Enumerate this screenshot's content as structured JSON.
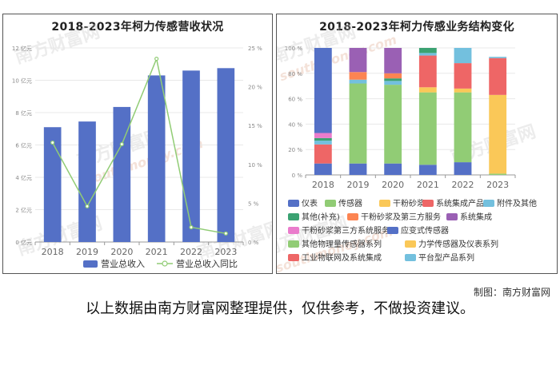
{
  "watermark": {
    "name": "南方财富网",
    "url": "southmoney.com"
  },
  "credit": "制图：南方财富网",
  "footnote": "以上数据由南方财富网整理提供，仅供参考，不做投资建议。",
  "colors": {
    "bar": "#5470c6",
    "line": "#91cc75",
    "categories": [
      "#5470c6",
      "#91cc75",
      "#fac858",
      "#ee6666",
      "#73c0de",
      "#3ba272",
      "#fc8452",
      "#9a60b4",
      "#ea7ccc",
      "#5470c6",
      "#91cc75",
      "#fac858",
      "#ee6666",
      "#73c0de"
    ]
  },
  "chart_data": [
    {
      "type": "bar",
      "title": "2018-2023年柯力传感营收状况",
      "categories": [
        "2018",
        "2019",
        "2020",
        "2021",
        "2022",
        "2023"
      ],
      "y_ticks": [
        "0 亿元",
        "2 亿元",
        "4 亿元",
        "6 亿元",
        "8 亿元",
        "10 亿元",
        "12 亿元"
      ],
      "y2_ticks": [
        "0 %",
        "5 %",
        "10 %",
        "15 %",
        "20 %",
        "25 %"
      ],
      "ylim": [
        0,
        12
      ],
      "y2lim": [
        0,
        25
      ],
      "series": [
        {
          "name": "营业总收入",
          "type": "bar",
          "axis": "left",
          "values": [
            7.1,
            7.45,
            8.35,
            10.3,
            10.6,
            10.75
          ]
        },
        {
          "name": "营业总收入同比",
          "type": "line",
          "axis": "right",
          "values": [
            12.8,
            4.6,
            12.6,
            23.6,
            1.9,
            1.1
          ]
        }
      ],
      "legend_position": "bottom"
    },
    {
      "type": "bar",
      "stacked": true,
      "title": "2018-2023年柯力传感业务结构变化",
      "categories": [
        "2018",
        "2019",
        "2020",
        "2021",
        "2022",
        "2023"
      ],
      "y_ticks": [
        "0 %",
        "20 %",
        "40 %",
        "60 %",
        "80 %",
        "100 %"
      ],
      "ylim": [
        0,
        100
      ],
      "series": [
        {
          "name": "仪表",
          "values": [
            9,
            9,
            9,
            8,
            10,
            0
          ]
        },
        {
          "name": "传感器",
          "values": [
            0,
            63,
            62,
            57,
            55,
            0
          ]
        },
        {
          "name": "干粉砂浆",
          "values": [
            0,
            0,
            0,
            4,
            3,
            0
          ]
        },
        {
          "name": "系统集成产品",
          "values": [
            15,
            0,
            0,
            25,
            20,
            0
          ]
        },
        {
          "name": "附件及其他",
          "values": [
            3,
            3,
            3,
            2,
            12,
            0
          ]
        },
        {
          "name": "其他(补充)",
          "values": [
            2,
            0,
            2,
            4,
            0,
            0
          ]
        },
        {
          "name": "干粉砂浆及第三方服务",
          "values": [
            0,
            6,
            4,
            0,
            0,
            0
          ]
        },
        {
          "name": "系统集成",
          "values": [
            0,
            19,
            20,
            0,
            0,
            0
          ]
        },
        {
          "name": "干粉砂浆第三方系统服务",
          "values": [
            4,
            0,
            0,
            0,
            0,
            0
          ]
        },
        {
          "name": "应变式传感器",
          "values": [
            67,
            0,
            0,
            0,
            0,
            0
          ]
        },
        {
          "name": "其他物理量传感器系列",
          "values": [
            0,
            0,
            0,
            0,
            0,
            1
          ]
        },
        {
          "name": "力学传感器及仪表系列",
          "values": [
            0,
            0,
            0,
            0,
            0,
            62
          ]
        },
        {
          "name": "工业物联网及系统集成",
          "values": [
            0,
            0,
            0,
            0,
            0,
            29
          ]
        },
        {
          "name": "平台型产品系列",
          "values": [
            0,
            0,
            0,
            0,
            0,
            1
          ]
        }
      ],
      "legend_position": "bottom"
    }
  ]
}
